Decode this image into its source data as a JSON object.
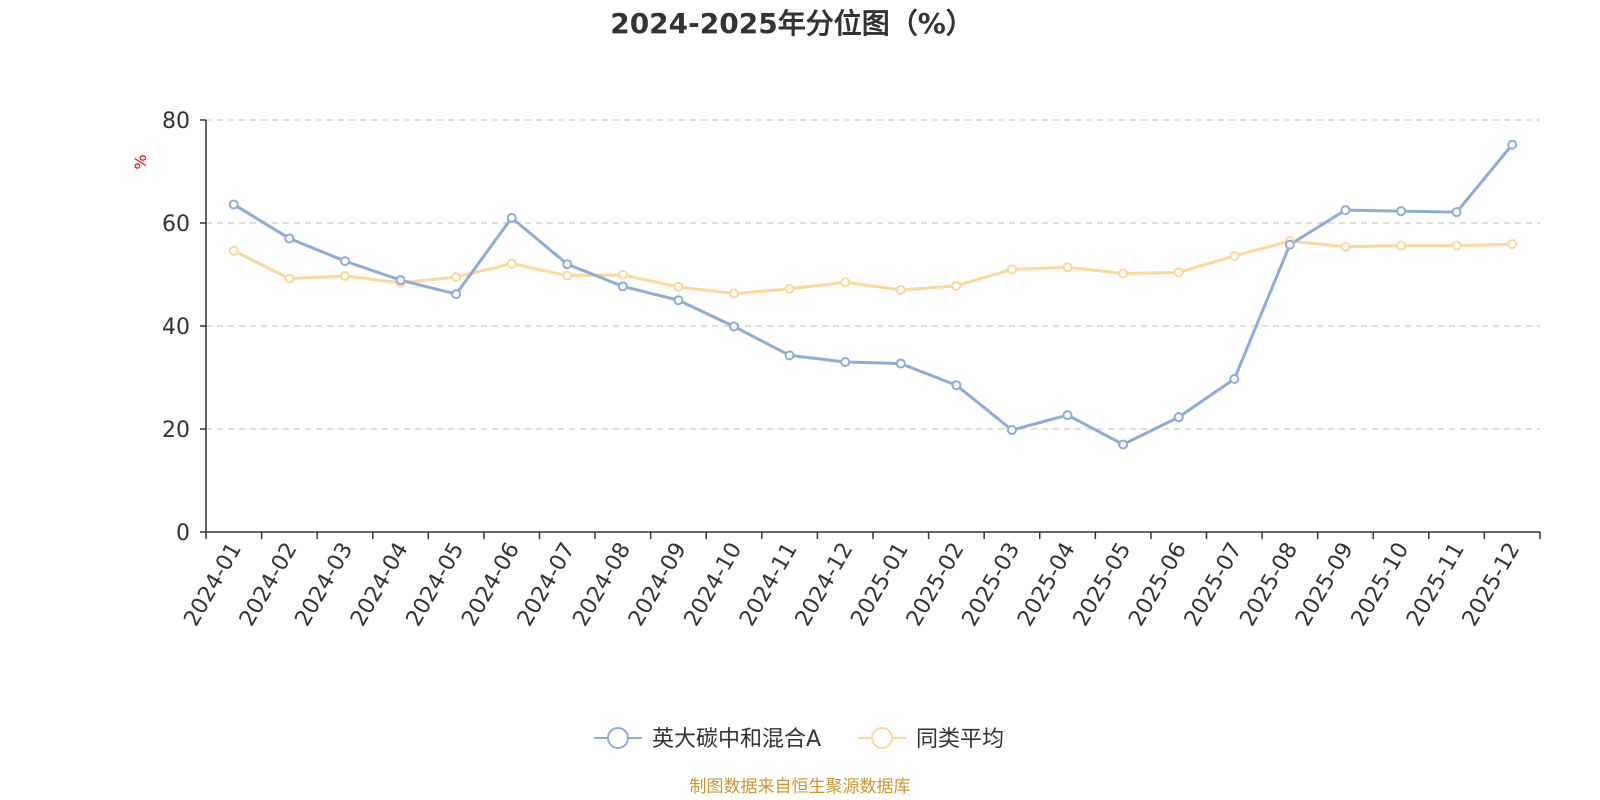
{
  "chart_data": {
    "type": "line",
    "title": "2024-2025年分位图（%）",
    "ylabel": "%",
    "ylim": [
      0,
      80
    ],
    "yticks": [
      0,
      20,
      40,
      60,
      80
    ],
    "grid": true,
    "legend_position": "bottom",
    "categories": [
      "2024-01",
      "2024-02",
      "2024-03",
      "2024-04",
      "2024-05",
      "2024-06",
      "2024-07",
      "2024-08",
      "2024-09",
      "2024-10",
      "2024-11",
      "2024-12",
      "2025-01",
      "2025-02",
      "2025-03",
      "2025-04",
      "2025-05",
      "2025-06",
      "2025-07",
      "2025-08",
      "2025-09",
      "2025-10",
      "2025-11",
      "2025-12"
    ],
    "series": [
      {
        "name": "英大碳中和混合A",
        "color": "#8eacd9",
        "values": [
          63.6,
          57.0,
          52.6,
          48.9,
          46.2,
          61.0,
          52.0,
          47.7,
          45.0,
          39.9,
          34.3,
          33.0,
          32.7,
          28.5,
          19.8,
          22.7,
          17.0,
          22.3,
          29.7,
          55.8,
          62.5,
          62.3,
          62.1,
          75.2
        ]
      },
      {
        "name": "同类平均",
        "color": "#fbd99a",
        "values": [
          54.6,
          49.2,
          49.7,
          48.4,
          49.5,
          52.1,
          49.8,
          49.9,
          47.6,
          46.3,
          47.2,
          48.5,
          47.0,
          47.8,
          51.0,
          51.4,
          50.2,
          50.4,
          53.6,
          56.5,
          55.4,
          55.6,
          55.6,
          55.9
        ]
      }
    ]
  },
  "footer": {
    "source": "制图数据来自恒生聚源数据库"
  }
}
